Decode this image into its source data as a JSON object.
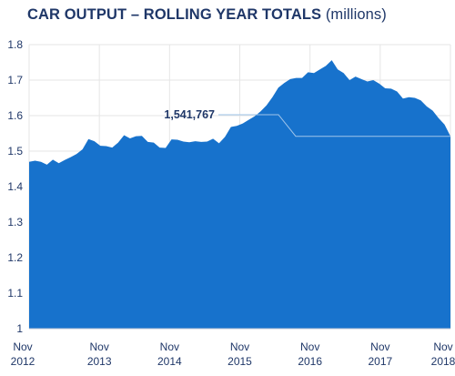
{
  "title": "CAR OUTPUT – ROLLING YEAR TOTALS",
  "title_unit": "(millions)",
  "colors": {
    "area": "#1772cc",
    "text": "#1f3768",
    "grid": "#e6e6e6",
    "annotation_line": "#9fc4ea"
  },
  "chart_data": {
    "type": "area",
    "title": "CAR OUTPUT – ROLLING YEAR TOTALS (millions)",
    "xlabel": "",
    "ylabel": "",
    "ylim": [
      1,
      1.8
    ],
    "yticks": [
      "1",
      "1.1",
      "1.2",
      "1.3",
      "1.4",
      "1.5",
      "1.6",
      "1.7",
      "1.8"
    ],
    "grid": true,
    "x_ticks": [
      {
        "month": "Nov",
        "year": "2012"
      },
      {
        "month": "Nov",
        "year": "2013"
      },
      {
        "month": "Nov",
        "year": "2014"
      },
      {
        "month": "Nov",
        "year": "2015"
      },
      {
        "month": "Nov",
        "year": "2016"
      },
      {
        "month": "Nov",
        "year": "2017"
      },
      {
        "month": "Nov",
        "year": "2018"
      }
    ],
    "series": [
      {
        "values": [
          1.47,
          1.473,
          1.47,
          1.462,
          1.476,
          1.466,
          1.475,
          1.483,
          1.492,
          1.505,
          1.534,
          1.528,
          1.515,
          1.514,
          1.51,
          1.524,
          1.545,
          1.536,
          1.542,
          1.543,
          1.526,
          1.524,
          1.51,
          1.509,
          1.533,
          1.532,
          1.527,
          1.525,
          1.528,
          1.526,
          1.527,
          1.535,
          1.522,
          1.54,
          1.568,
          1.571,
          1.578,
          1.588,
          1.598,
          1.612,
          1.629,
          1.652,
          1.679,
          1.692,
          1.703,
          1.706,
          1.706,
          1.722,
          1.72,
          1.73,
          1.74,
          1.756,
          1.73,
          1.72,
          1.7,
          1.71,
          1.703,
          1.696,
          1.7,
          1.69,
          1.677,
          1.676,
          1.668,
          1.648,
          1.652,
          1.65,
          1.643,
          1.626,
          1.614,
          1.593,
          1.575,
          1.542
        ]
      }
    ],
    "annotation": {
      "label": "1,541,767",
      "value": 1.541767
    }
  }
}
